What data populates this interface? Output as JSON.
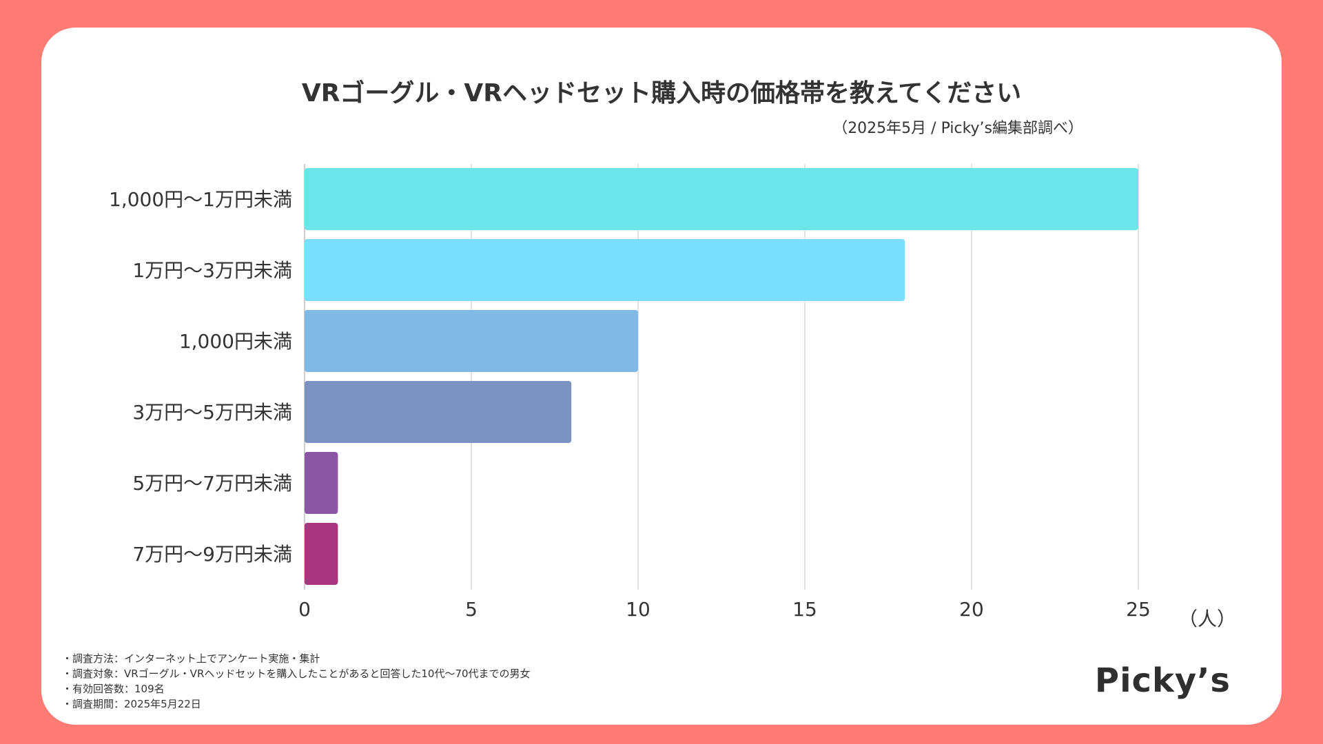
{
  "title": "VRゴーグル・VRヘッドセット購入時の価格帯を教えてください",
  "subtitle": "（2025年5月 / Picky’s編集部調べ）",
  "chart_data": {
    "type": "bar",
    "orientation": "horizontal",
    "categories": [
      "1,000円〜1万円未満",
      "1万円〜3万円未満",
      "1,000円未満",
      "3万円〜5万円未満",
      "5万円〜7万円未満",
      "7万円〜9万円未満"
    ],
    "values": [
      25,
      18,
      10,
      8,
      1,
      1
    ],
    "colors": [
      "#6CE5E8",
      "#7ADFFE",
      "#80B9E5",
      "#7C93C1",
      "#8B56A3",
      "#A8367F"
    ],
    "xlim": [
      0,
      25
    ],
    "ticks": [
      "0",
      "5",
      "10",
      "15",
      "20",
      "25"
    ],
    "tick_values": [
      0,
      5,
      10,
      15,
      20,
      25
    ],
    "unit_label": "（人）",
    "grid": true
  },
  "notes": [
    "・調査方法：インターネット上でアンケート実施・集計",
    "・調査対象：VRゴーグル・VRヘッドセットを購入したことがあると回答した10代〜70代までの男女",
    "・有効回答数：109名",
    "・調査期間：2025年5月22日"
  ],
  "logo": "Picky’s"
}
